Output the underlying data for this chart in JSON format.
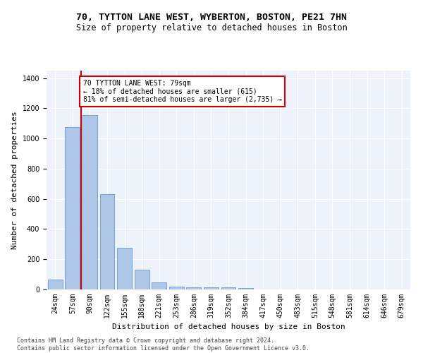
{
  "title1": "70, TYTTON LANE WEST, WYBERTON, BOSTON, PE21 7HN",
  "title2": "Size of property relative to detached houses in Boston",
  "xlabel": "Distribution of detached houses by size in Boston",
  "ylabel": "Number of detached properties",
  "categories": [
    "24sqm",
    "57sqm",
    "90sqm",
    "122sqm",
    "155sqm",
    "188sqm",
    "221sqm",
    "253sqm",
    "286sqm",
    "319sqm",
    "352sqm",
    "384sqm",
    "417sqm",
    "450sqm",
    "483sqm",
    "515sqm",
    "548sqm",
    "581sqm",
    "614sqm",
    "646sqm",
    "679sqm"
  ],
  "values": [
    65,
    1075,
    1155,
    630,
    275,
    130,
    48,
    18,
    12,
    15,
    12,
    8,
    0,
    0,
    0,
    0,
    0,
    0,
    0,
    0,
    0
  ],
  "bar_color": "#aec6e8",
  "bar_edge_color": "#6699cc",
  "vline_color": "#cc0000",
  "annotation_text": "70 TYTTON LANE WEST: 79sqm\n← 18% of detached houses are smaller (615)\n81% of semi-detached houses are larger (2,735) →",
  "annotation_box_color": "#ffffff",
  "annotation_box_edge": "#cc0000",
  "footnote": "Contains HM Land Registry data © Crown copyright and database right 2024.\nContains public sector information licensed under the Open Government Licence v3.0.",
  "ylim": [
    0,
    1450
  ],
  "background_color": "#eef2fb",
  "grid_color": "#ffffff",
  "title1_fontsize": 9.5,
  "title2_fontsize": 8.5,
  "ylabel_fontsize": 8,
  "xlabel_fontsize": 8,
  "tick_fontsize": 7,
  "annotation_fontsize": 7,
  "footnote_fontsize": 6
}
